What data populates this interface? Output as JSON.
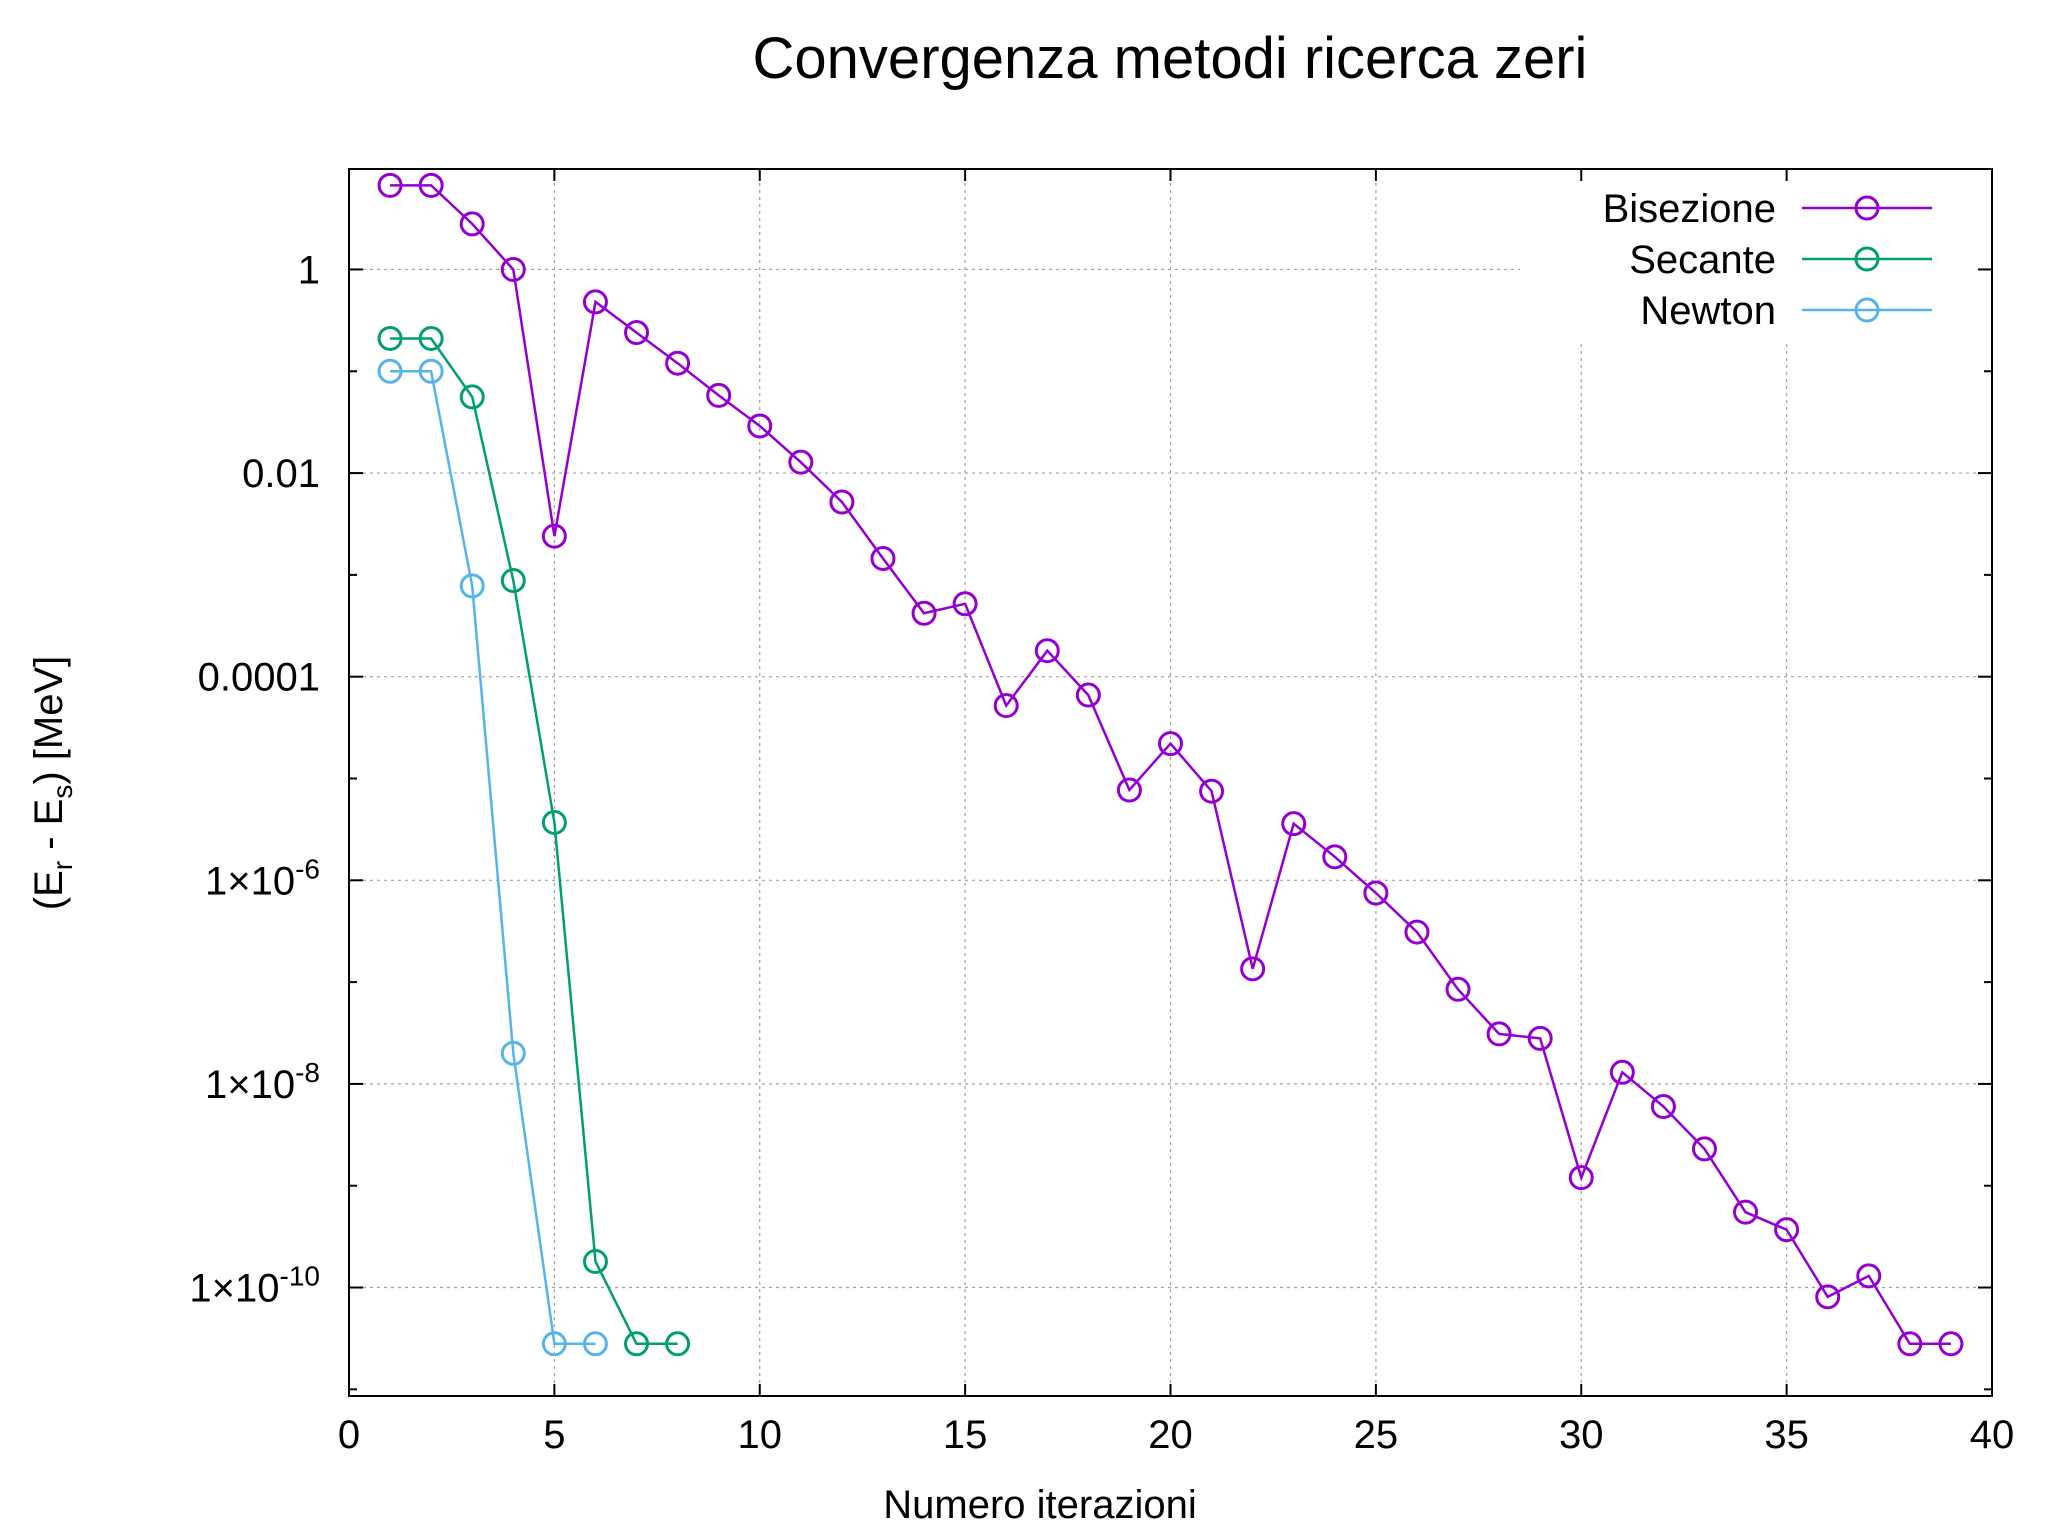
{
  "chart_data": {
    "type": "line",
    "title": "Convergenza metodi ricerca zeri",
    "xlabel": "Numero iterazioni",
    "ylabel": "(E_r - E_s) [MeV]",
    "ylabel_parts": {
      "open": "(E",
      "sub1": "r",
      "mid": " - E",
      "sub2": "s",
      "close": ") [MeV]"
    },
    "xlim": [
      0,
      40
    ],
    "ylim": [
      8.6e-12,
      9.7
    ],
    "yscale": "log",
    "grid": true,
    "legend_position": "top-right",
    "x_ticks": [
      "0",
      "5",
      "10",
      "15",
      "20",
      "25",
      "30",
      "35",
      "40"
    ],
    "y_ticks": [
      {
        "value": 1,
        "mantissa": "1",
        "exponent": ""
      },
      {
        "value": 0.01,
        "mantissa": "0.01",
        "exponent": ""
      },
      {
        "value": 0.0001,
        "mantissa": "0.0001",
        "exponent": ""
      },
      {
        "value": 1e-06,
        "mantissa": "1×10",
        "exponent": "-6"
      },
      {
        "value": 1e-08,
        "mantissa": "1×10",
        "exponent": "-8"
      },
      {
        "value": 1e-10,
        "mantissa": "1×10",
        "exponent": "-10"
      }
    ],
    "series": [
      {
        "name": "Bisezione",
        "color": "#9400d3",
        "x": [
          1,
          2,
          3,
          4,
          5,
          6,
          7,
          8,
          9,
          10,
          11,
          12,
          13,
          14,
          15,
          16,
          17,
          18,
          19,
          20,
          21,
          22,
          23,
          24,
          25,
          26,
          27,
          28,
          29,
          30,
          31,
          32,
          33,
          34,
          35,
          36,
          37,
          38,
          39
        ],
        "y": [
          6.7,
          6.7,
          2.8,
          1.0,
          0.0024,
          0.48,
          0.24,
          0.12,
          0.058,
          0.029,
          0.0128,
          0.0052,
          0.00145,
          0.00042,
          0.00052,
          5.2e-05,
          0.00018,
          6.6e-05,
          7.7e-06,
          2.2e-05,
          7.5e-06,
          1.35e-07,
          3.6e-06,
          1.7e-06,
          7.5e-07,
          3.1e-07,
          8.5e-08,
          3.1e-08,
          2.8e-08,
          1.2e-09,
          1.3e-08,
          6e-09,
          2.3e-09,
          5.5e-10,
          3.7e-10,
          8.1e-11,
          1.3e-10,
          2.8e-11,
          2.8e-11
        ]
      },
      {
        "name": "Secante",
        "color": "#009e73",
        "x": [
          1,
          2,
          3,
          4,
          5,
          6,
          7,
          8
        ],
        "y": [
          0.21,
          0.21,
          0.056,
          0.00088,
          3.7e-06,
          1.8e-10,
          2.8e-11,
          2.8e-11
        ]
      },
      {
        "name": "Newton",
        "color": "#56b4e9",
        "x": [
          1,
          2,
          3,
          4,
          5,
          6
        ],
        "y": [
          0.1,
          0.1,
          0.00078,
          2e-08,
          2.8e-11,
          2.8e-11
        ]
      }
    ]
  }
}
